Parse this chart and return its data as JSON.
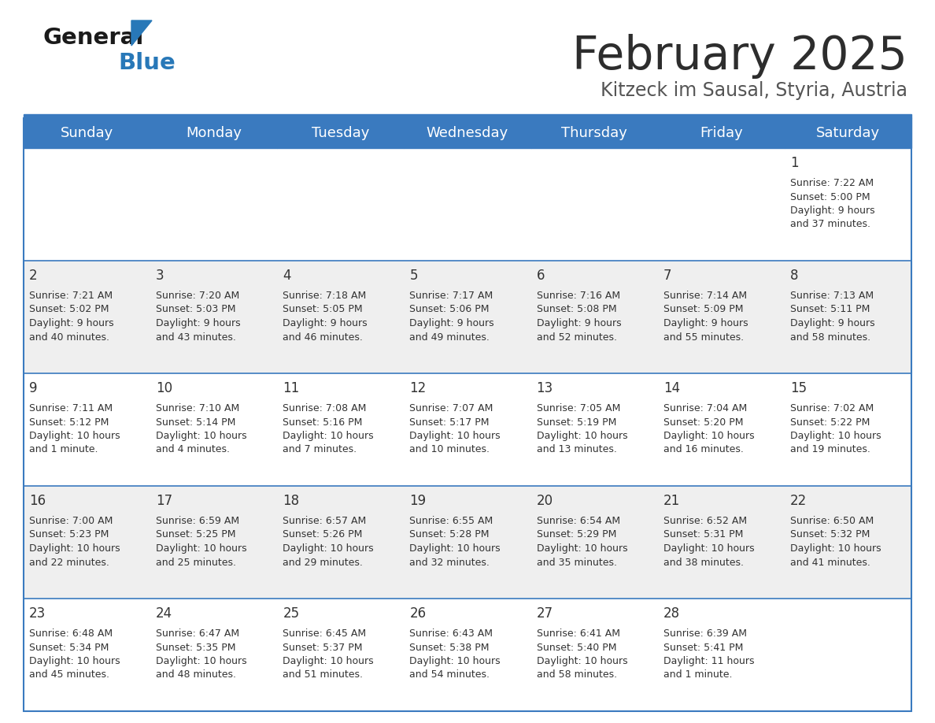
{
  "title": "February 2025",
  "subtitle": "Kitzeck im Sausal, Styria, Austria",
  "days_of_week": [
    "Sunday",
    "Monday",
    "Tuesday",
    "Wednesday",
    "Thursday",
    "Friday",
    "Saturday"
  ],
  "header_bg": "#3a7abf",
  "header_text": "#ffffff",
  "row_bg_odd": "#efefef",
  "row_bg_even": "#ffffff",
  "cell_text": "#333333",
  "title_color": "#2d2d2d",
  "subtitle_color": "#555555",
  "divider_color": "#3a7abf",
  "logo_black": "#1a1a1a",
  "logo_blue": "#2878b8",
  "calendar_data": [
    [
      null,
      null,
      null,
      null,
      null,
      null,
      {
        "day": 1,
        "sunrise": "7:22 AM",
        "sunset": "5:00 PM",
        "daylight_l1": "Daylight: 9 hours",
        "daylight_l2": "and 37 minutes."
      }
    ],
    [
      {
        "day": 2,
        "sunrise": "7:21 AM",
        "sunset": "5:02 PM",
        "daylight_l1": "Daylight: 9 hours",
        "daylight_l2": "and 40 minutes."
      },
      {
        "day": 3,
        "sunrise": "7:20 AM",
        "sunset": "5:03 PM",
        "daylight_l1": "Daylight: 9 hours",
        "daylight_l2": "and 43 minutes."
      },
      {
        "day": 4,
        "sunrise": "7:18 AM",
        "sunset": "5:05 PM",
        "daylight_l1": "Daylight: 9 hours",
        "daylight_l2": "and 46 minutes."
      },
      {
        "day": 5,
        "sunrise": "7:17 AM",
        "sunset": "5:06 PM",
        "daylight_l1": "Daylight: 9 hours",
        "daylight_l2": "and 49 minutes."
      },
      {
        "day": 6,
        "sunrise": "7:16 AM",
        "sunset": "5:08 PM",
        "daylight_l1": "Daylight: 9 hours",
        "daylight_l2": "and 52 minutes."
      },
      {
        "day": 7,
        "sunrise": "7:14 AM",
        "sunset": "5:09 PM",
        "daylight_l1": "Daylight: 9 hours",
        "daylight_l2": "and 55 minutes."
      },
      {
        "day": 8,
        "sunrise": "7:13 AM",
        "sunset": "5:11 PM",
        "daylight_l1": "Daylight: 9 hours",
        "daylight_l2": "and 58 minutes."
      }
    ],
    [
      {
        "day": 9,
        "sunrise": "7:11 AM",
        "sunset": "5:12 PM",
        "daylight_l1": "Daylight: 10 hours",
        "daylight_l2": "and 1 minute."
      },
      {
        "day": 10,
        "sunrise": "7:10 AM",
        "sunset": "5:14 PM",
        "daylight_l1": "Daylight: 10 hours",
        "daylight_l2": "and 4 minutes."
      },
      {
        "day": 11,
        "sunrise": "7:08 AM",
        "sunset": "5:16 PM",
        "daylight_l1": "Daylight: 10 hours",
        "daylight_l2": "and 7 minutes."
      },
      {
        "day": 12,
        "sunrise": "7:07 AM",
        "sunset": "5:17 PM",
        "daylight_l1": "Daylight: 10 hours",
        "daylight_l2": "and 10 minutes."
      },
      {
        "day": 13,
        "sunrise": "7:05 AM",
        "sunset": "5:19 PM",
        "daylight_l1": "Daylight: 10 hours",
        "daylight_l2": "and 13 minutes."
      },
      {
        "day": 14,
        "sunrise": "7:04 AM",
        "sunset": "5:20 PM",
        "daylight_l1": "Daylight: 10 hours",
        "daylight_l2": "and 16 minutes."
      },
      {
        "day": 15,
        "sunrise": "7:02 AM",
        "sunset": "5:22 PM",
        "daylight_l1": "Daylight: 10 hours",
        "daylight_l2": "and 19 minutes."
      }
    ],
    [
      {
        "day": 16,
        "sunrise": "7:00 AM",
        "sunset": "5:23 PM",
        "daylight_l1": "Daylight: 10 hours",
        "daylight_l2": "and 22 minutes."
      },
      {
        "day": 17,
        "sunrise": "6:59 AM",
        "sunset": "5:25 PM",
        "daylight_l1": "Daylight: 10 hours",
        "daylight_l2": "and 25 minutes."
      },
      {
        "day": 18,
        "sunrise": "6:57 AM",
        "sunset": "5:26 PM",
        "daylight_l1": "Daylight: 10 hours",
        "daylight_l2": "and 29 minutes."
      },
      {
        "day": 19,
        "sunrise": "6:55 AM",
        "sunset": "5:28 PM",
        "daylight_l1": "Daylight: 10 hours",
        "daylight_l2": "and 32 minutes."
      },
      {
        "day": 20,
        "sunrise": "6:54 AM",
        "sunset": "5:29 PM",
        "daylight_l1": "Daylight: 10 hours",
        "daylight_l2": "and 35 minutes."
      },
      {
        "day": 21,
        "sunrise": "6:52 AM",
        "sunset": "5:31 PM",
        "daylight_l1": "Daylight: 10 hours",
        "daylight_l2": "and 38 minutes."
      },
      {
        "day": 22,
        "sunrise": "6:50 AM",
        "sunset": "5:32 PM",
        "daylight_l1": "Daylight: 10 hours",
        "daylight_l2": "and 41 minutes."
      }
    ],
    [
      {
        "day": 23,
        "sunrise": "6:48 AM",
        "sunset": "5:34 PM",
        "daylight_l1": "Daylight: 10 hours",
        "daylight_l2": "and 45 minutes."
      },
      {
        "day": 24,
        "sunrise": "6:47 AM",
        "sunset": "5:35 PM",
        "daylight_l1": "Daylight: 10 hours",
        "daylight_l2": "and 48 minutes."
      },
      {
        "day": 25,
        "sunrise": "6:45 AM",
        "sunset": "5:37 PM",
        "daylight_l1": "Daylight: 10 hours",
        "daylight_l2": "and 51 minutes."
      },
      {
        "day": 26,
        "sunrise": "6:43 AM",
        "sunset": "5:38 PM",
        "daylight_l1": "Daylight: 10 hours",
        "daylight_l2": "and 54 minutes."
      },
      {
        "day": 27,
        "sunrise": "6:41 AM",
        "sunset": "5:40 PM",
        "daylight_l1": "Daylight: 10 hours",
        "daylight_l2": "and 58 minutes."
      },
      {
        "day": 28,
        "sunrise": "6:39 AM",
        "sunset": "5:41 PM",
        "daylight_l1": "Daylight: 11 hours",
        "daylight_l2": "and 1 minute."
      },
      null
    ]
  ]
}
